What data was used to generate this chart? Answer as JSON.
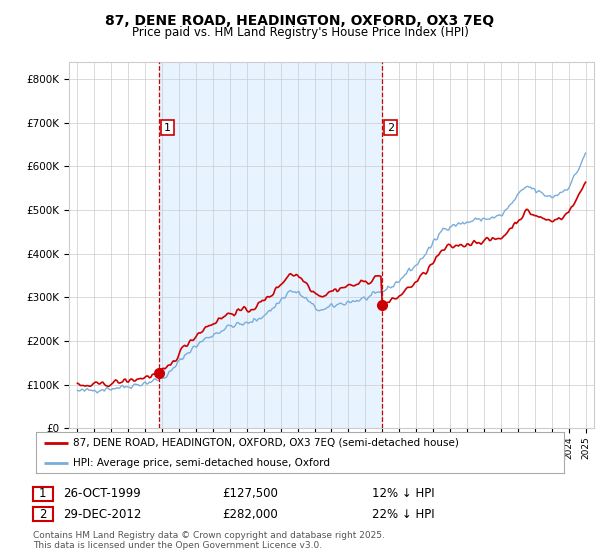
{
  "title": "87, DENE ROAD, HEADINGTON, OXFORD, OX3 7EQ",
  "subtitle": "Price paid vs. HM Land Registry's House Price Index (HPI)",
  "ytick_values": [
    0,
    100000,
    200000,
    300000,
    400000,
    500000,
    600000,
    700000,
    800000
  ],
  "ylim": [
    0,
    840000
  ],
  "xlim_start": 1994.5,
  "xlim_end": 2025.5,
  "purchase1_date": 1999.82,
  "purchase1_price": 127500,
  "purchase2_date": 2012.99,
  "purchase2_price": 282000,
  "legend1": "87, DENE ROAD, HEADINGTON, OXFORD, OX3 7EQ (semi-detached house)",
  "legend2": "HPI: Average price, semi-detached house, Oxford",
  "line_color_property": "#cc0000",
  "line_color_hpi": "#7aaddb",
  "vline_color": "#cc0000",
  "shade_color": "#ddeeff",
  "background_color": "#ffffff",
  "grid_color": "#cccccc",
  "title_fontsize": 10,
  "subtitle_fontsize": 8.5,
  "tick_fontsize": 7.5,
  "legend_fontsize": 7.5,
  "info_fontsize": 8.5,
  "footnote_fontsize": 6.5
}
